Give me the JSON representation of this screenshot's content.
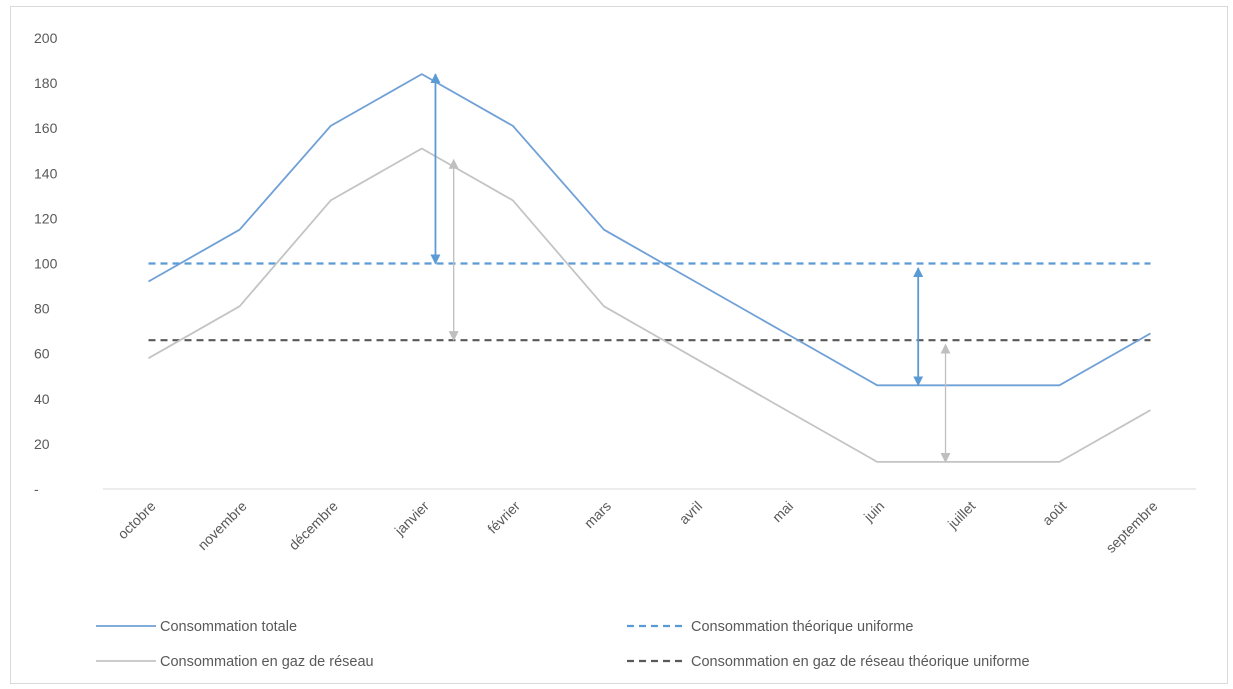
{
  "chart_data": {
    "type": "line",
    "categories": [
      "octobre",
      "novembre",
      "décembre",
      "janvier",
      "février",
      "mars",
      "avril",
      "mai",
      "juin",
      "juillet",
      "août",
      "septembre"
    ],
    "ylim": [
      0,
      200
    ],
    "yticks": [
      {
        "value": 0,
        "label": "-"
      },
      {
        "value": 20,
        "label": "20"
      },
      {
        "value": 40,
        "label": "40"
      },
      {
        "value": 60,
        "label": "60"
      },
      {
        "value": 80,
        "label": "80"
      },
      {
        "value": 100,
        "label": "100"
      },
      {
        "value": 120,
        "label": "120"
      },
      {
        "value": 140,
        "label": "140"
      },
      {
        "value": 160,
        "label": "160"
      },
      {
        "value": 180,
        "label": "180"
      },
      {
        "value": 200,
        "label": "200"
      }
    ],
    "grid": false,
    "legend_position": "bottom",
    "series": [
      {
        "name": "Consommation totale",
        "style": "solid",
        "color": "#6fa0d6",
        "values": [
          92,
          115,
          161,
          184,
          161,
          115,
          92,
          69,
          46,
          46,
          46,
          69
        ]
      },
      {
        "name": "Consommation en gaz de réseau",
        "style": "solid",
        "color": "#c4c4c4",
        "values": [
          58,
          81,
          128,
          151,
          128,
          81,
          58,
          35,
          12,
          12,
          12,
          35
        ]
      },
      {
        "name": "Consommation théorique uniforme",
        "style": "dashed",
        "color": "#5b9bd5",
        "values": [
          100,
          100,
          100,
          100,
          100,
          100,
          100,
          100,
          100,
          100,
          100,
          100
        ]
      },
      {
        "name": "Consommation en gaz de réseau théorique uniforme",
        "style": "dashed",
        "color": "#595959",
        "values": [
          66,
          66,
          66,
          66,
          66,
          66,
          66,
          66,
          66,
          66,
          66,
          66
        ]
      }
    ],
    "annotations": [
      {
        "kind": "double-arrow",
        "color": "#5b9bd5",
        "between_categories": [
          "janvier",
          "février"
        ],
        "position": 0.15,
        "from": 100,
        "to": 184
      },
      {
        "kind": "double-arrow",
        "color": "#bfbfbf",
        "between_categories": [
          "janvier",
          "février"
        ],
        "position": 0.35,
        "from": 66,
        "to": 146
      },
      {
        "kind": "double-arrow",
        "color": "#5b9bd5",
        "between_categories": [
          "juin",
          "juillet"
        ],
        "position": 0.45,
        "from": 46,
        "to": 98
      },
      {
        "kind": "double-arrow",
        "color": "#bfbfbf",
        "between_categories": [
          "juin",
          "juillet"
        ],
        "position": 0.75,
        "from": 12,
        "to": 64
      }
    ]
  }
}
